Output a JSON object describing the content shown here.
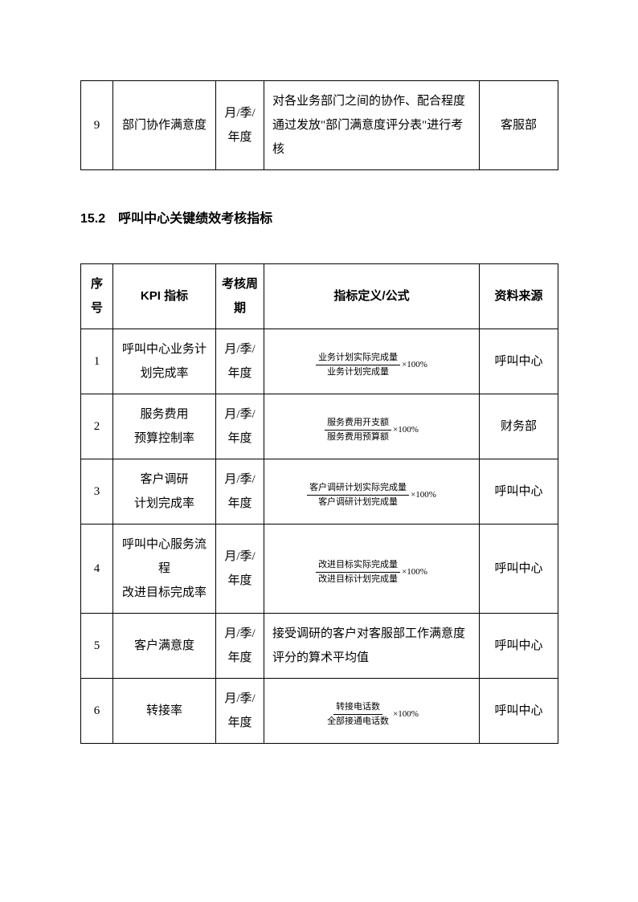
{
  "table1": {
    "row": {
      "seq": "9",
      "kpi": "部门协作满意度",
      "cycle": "月/季/年度",
      "formula": "对各业务部门之间的协作、配合程度通过发放\"部门满意度评分表\"进行考核",
      "source": "客服部"
    }
  },
  "heading": "15.2　呼叫中心关键绩效考核指标",
  "table2": {
    "headers": {
      "seq": "序号",
      "kpi": "KPI 指标",
      "cycle": "考核周期",
      "formula": "指标定义/公式",
      "source": "资料来源"
    },
    "rows": [
      {
        "seq": "1",
        "kpi": "呼叫中心业务计划完成率",
        "cycle": "月/季/年度",
        "frac_num": "业务计划实际完成量",
        "frac_den": "业务计划完成量",
        "tail": "×100%",
        "source": "呼叫中心"
      },
      {
        "seq": "2",
        "kpi": "服务费用\n预算控制率",
        "cycle": "月/季/年度",
        "frac_num": "服务费用开支额",
        "frac_den": "服务费用预算额",
        "tail": "×100%",
        "source": "财务部"
      },
      {
        "seq": "3",
        "kpi": "客户调研\n计划完成率",
        "cycle": "月/季/年度",
        "frac_num": "客户调研计划实际完成量",
        "frac_den": "客户调研计划完成量",
        "tail": "×100%",
        "source": "呼叫中心"
      },
      {
        "seq": "4",
        "kpi": "呼叫中心服务流程\n改进目标完成率",
        "cycle": "月/季/年度",
        "frac_num": "改进目标实际完成量",
        "frac_den": "改进目标计划完成量",
        "tail": "×100%",
        "source": "呼叫中心"
      },
      {
        "seq": "5",
        "kpi": "客户满意度",
        "cycle": "月/季/年度",
        "formula_text": "接受调研的客户对客服部工作满意度评分的算术平均值",
        "source": "呼叫中心"
      },
      {
        "seq": "6",
        "kpi": "转接率",
        "cycle": "月/季/年度",
        "frac_num": "转接电话数",
        "frac_den": "全部接通电话数",
        "tail": "×100%",
        "source": "呼叫中心"
      }
    ]
  }
}
